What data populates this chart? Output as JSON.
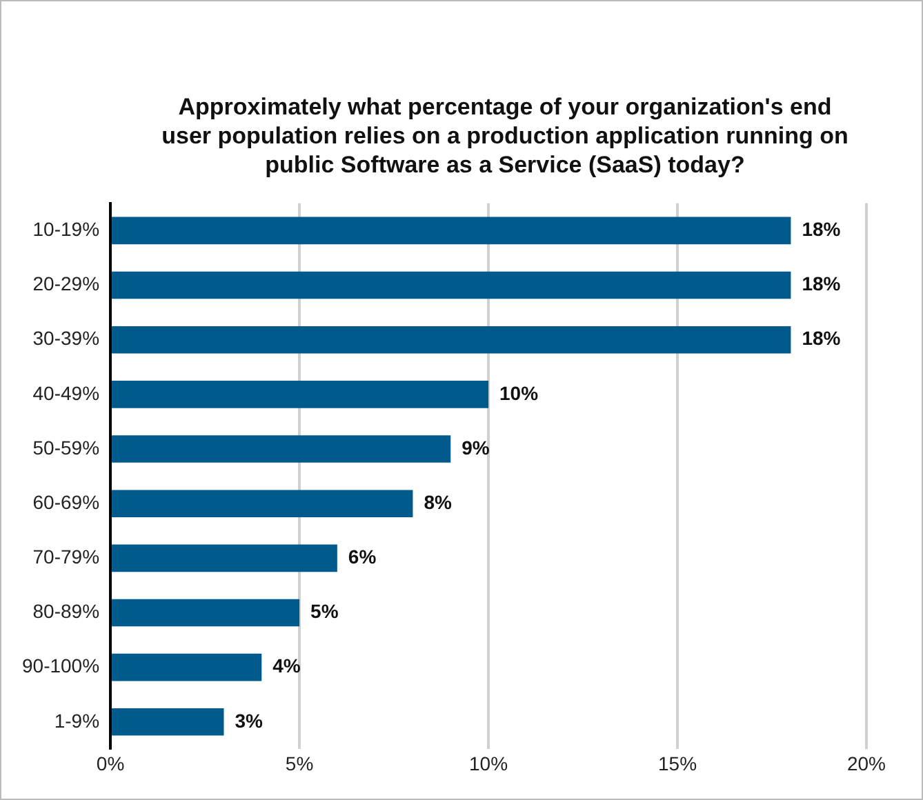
{
  "chart_data": {
    "type": "bar",
    "orientation": "horizontal",
    "title": "Approximately what percentage of your organization's end user population relies on a production application running on public Software as a Service (SaaS) today?",
    "categories": [
      "10-19%",
      "20-29%",
      "30-39%",
      "40-49%",
      "50-59%",
      "60-69%",
      "70-79%",
      "80-89%",
      "90-100%",
      "1-9%"
    ],
    "values": [
      18,
      18,
      18,
      10,
      9,
      8,
      6,
      5,
      4,
      3
    ],
    "value_labels": [
      "18%",
      "18%",
      "18%",
      "10%",
      "9%",
      "8%",
      "6%",
      "5%",
      "4%",
      "3%"
    ],
    "color": "#005a8c",
    "xlim": [
      0,
      20
    ],
    "xticks": [
      {
        "value": 0,
        "label": "0%"
      },
      {
        "value": 5,
        "label": "5%"
      },
      {
        "value": 10,
        "label": "10%"
      },
      {
        "value": 15,
        "label": "15%"
      },
      {
        "value": 20,
        "label": "20%"
      }
    ],
    "grid": "x"
  }
}
